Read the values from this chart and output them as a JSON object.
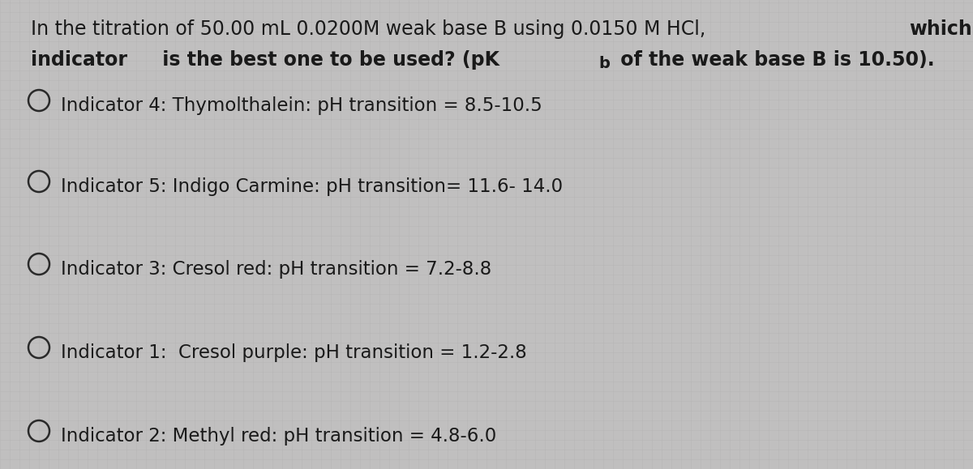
{
  "background_color": "#c0bfbf",
  "grid_color": "#b8b7b7",
  "text_color": "#1a1a1a",
  "circle_color": "#2a2a2a",
  "title_line1_normal": "In the titration of 50.00 mL 0.0200M weak base B using 0.0150 M HCl, ",
  "title_line1_bold": "which",
  "title_line2_bold1": "indicator",
  "title_line2_bold2": " is the best one to be used? (pK",
  "title_line2_sub": "b",
  "title_line2_bold3": " of the weak base B is 10.50).",
  "options": [
    "Indicator 4: Thymolthalein: pH transition = 8.5-10.5",
    "Indicator 5: Indigo Carmine: pH transition= 11.6- 14.0",
    "Indicator 3: Cresol red: pH transition = 7.2-8.8",
    "Indicator 1:  Cresol purple: pH transition = 1.2-2.8",
    "Indicator 2: Methyl red: pH transition = 4.8-6.0"
  ],
  "font_size_title": 17.0,
  "font_size_options": 16.5,
  "figsize": [
    12.0,
    5.79
  ],
  "dpi": 100
}
